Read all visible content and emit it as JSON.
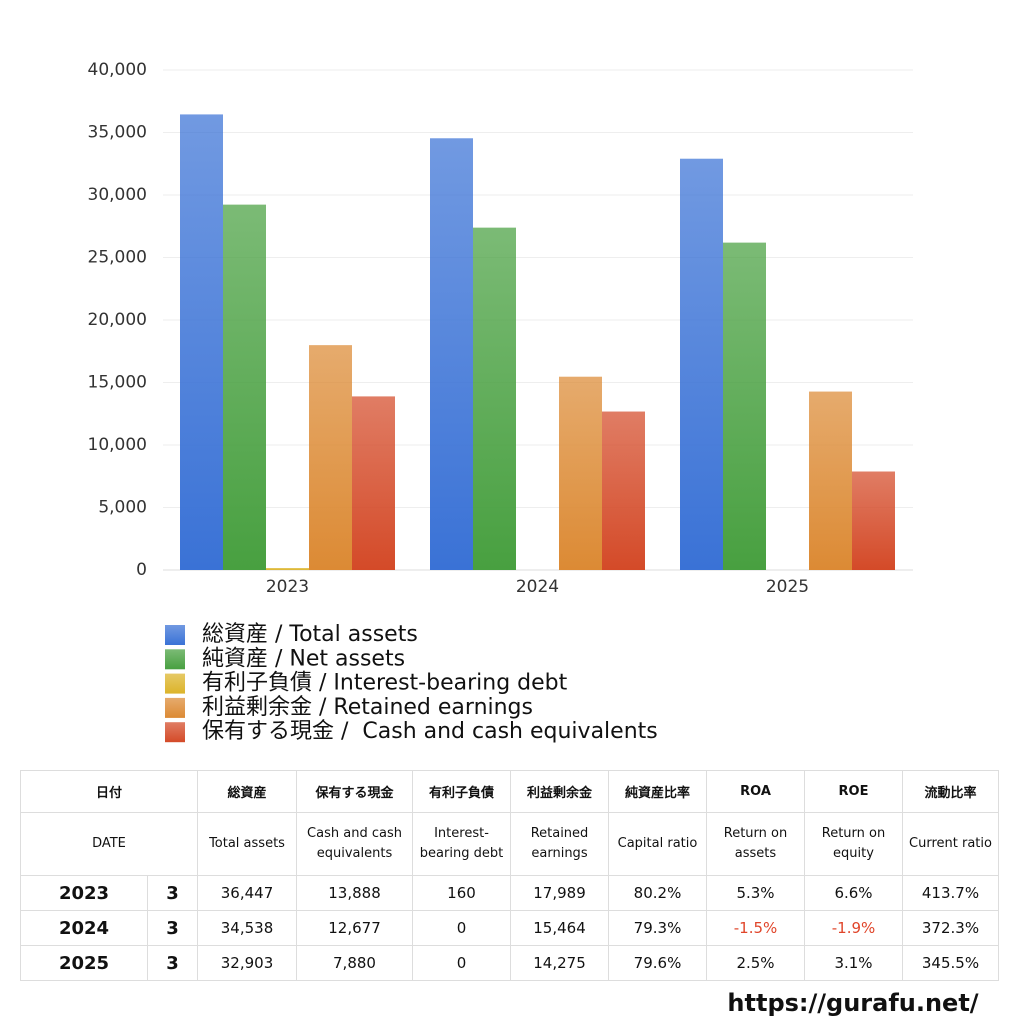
{
  "chart_data": {
    "type": "bar",
    "categories": [
      "2023",
      "2024",
      "2025"
    ],
    "series": [
      {
        "name": "総資産 / Total assets",
        "color": "#3a72d6",
        "values": [
          36447,
          34538,
          32903
        ]
      },
      {
        "name": "純資産 / Net assets",
        "color": "#48a040",
        "values": [
          29230,
          27389,
          26191
        ]
      },
      {
        "name": "有利子負債 / Interest-bearing debt",
        "color": "#dcb42a",
        "values": [
          160,
          0,
          0
        ]
      },
      {
        "name": "利益剰余金 / Retained earnings",
        "color": "#dc8a34",
        "values": [
          17989,
          15464,
          14275
        ]
      },
      {
        "name": "保有する現金 /  Cash and cash equivalents",
        "color": "#d44a28",
        "values": [
          13888,
          12677,
          7880
        ]
      }
    ],
    "ylim": [
      0,
      40000
    ],
    "yticks": [
      0,
      {
        "value": 5000,
        "label": "5,000"
      },
      {
        "value": 10000,
        "label": "10,000"
      },
      {
        "value": 15000,
        "label": "15,000"
      },
      {
        "value": 20000,
        "label": "20,000"
      },
      {
        "value": 25000,
        "label": "25,000"
      },
      {
        "value": 30000,
        "label": "30,000"
      },
      {
        "value": 35000,
        "label": "35,000"
      },
      {
        "value": 40000,
        "label": "40,000"
      }
    ],
    "grid": true
  },
  "table": {
    "header_ja": [
      "日付",
      "総資産",
      "保有する現金",
      "有利子負債",
      "利益剰余金",
      "純資産比率",
      "ROA",
      "ROE",
      "流動比率"
    ],
    "header_en": [
      "DATE",
      "Total assets",
      "Cash and cash equivalents",
      "Interest-bearing debt",
      "Retained earnings",
      "Capital ratio",
      "Return on assets",
      "Return on equity",
      "Current ratio"
    ],
    "rows": [
      {
        "year": "2023",
        "month": "3",
        "cells": [
          "36,447",
          "13,888",
          "160",
          "17,989",
          "80.2%",
          "5.3%",
          "6.6%",
          "413.7%"
        ]
      },
      {
        "year": "2024",
        "month": "3",
        "cells": [
          "34,538",
          "12,677",
          "0",
          "15,464",
          "79.3%",
          "-1.5%",
          "-1.9%",
          "372.3%"
        ]
      },
      {
        "year": "2025",
        "month": "3",
        "cells": [
          "32,903",
          "7,880",
          "0",
          "14,275",
          "79.6%",
          "2.5%",
          "3.1%",
          "345.5%"
        ]
      }
    ],
    "negative_color": "#e0452a"
  },
  "footer": "https://gurafu.net/"
}
